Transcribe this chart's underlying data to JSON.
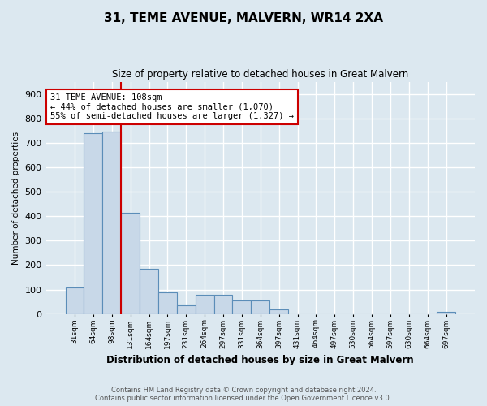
{
  "title": "31, TEME AVENUE, MALVERN, WR14 2XA",
  "subtitle": "Size of property relative to detached houses in Great Malvern",
  "xlabel": "Distribution of detached houses by size in Great Malvern",
  "ylabel": "Number of detached properties",
  "footer_line1": "Contains HM Land Registry data © Crown copyright and database right 2024.",
  "footer_line2": "Contains public sector information licensed under the Open Government Licence v3.0.",
  "annotation_line1": "31 TEME AVENUE: 108sqm",
  "annotation_line2": "← 44% of detached houses are smaller (1,070)",
  "annotation_line3": "55% of semi-detached houses are larger (1,327) →",
  "bar_color": "#c8d8e8",
  "bar_edge_color": "#5b8db8",
  "red_line_x": 2.5,
  "categories": [
    "31sqm",
    "64sqm",
    "98sqm",
    "131sqm",
    "164sqm",
    "197sqm",
    "231sqm",
    "264sqm",
    "297sqm",
    "331sqm",
    "364sqm",
    "397sqm",
    "431sqm",
    "464sqm",
    "497sqm",
    "530sqm",
    "564sqm",
    "597sqm",
    "630sqm",
    "664sqm",
    "697sqm"
  ],
  "values": [
    110,
    740,
    745,
    415,
    185,
    90,
    35,
    80,
    80,
    55,
    55,
    20,
    0,
    0,
    0,
    0,
    0,
    0,
    0,
    0,
    10
  ],
  "ylim": [
    0,
    950
  ],
  "yticks": [
    0,
    100,
    200,
    300,
    400,
    500,
    600,
    700,
    800,
    900
  ],
  "background_color": "#dce8f0",
  "plot_bg_color": "#dce8f0",
  "grid_color": "#ffffff",
  "annotation_box_color": "#ffffff",
  "annotation_box_edge": "#cc0000",
  "red_line_color": "#cc0000"
}
